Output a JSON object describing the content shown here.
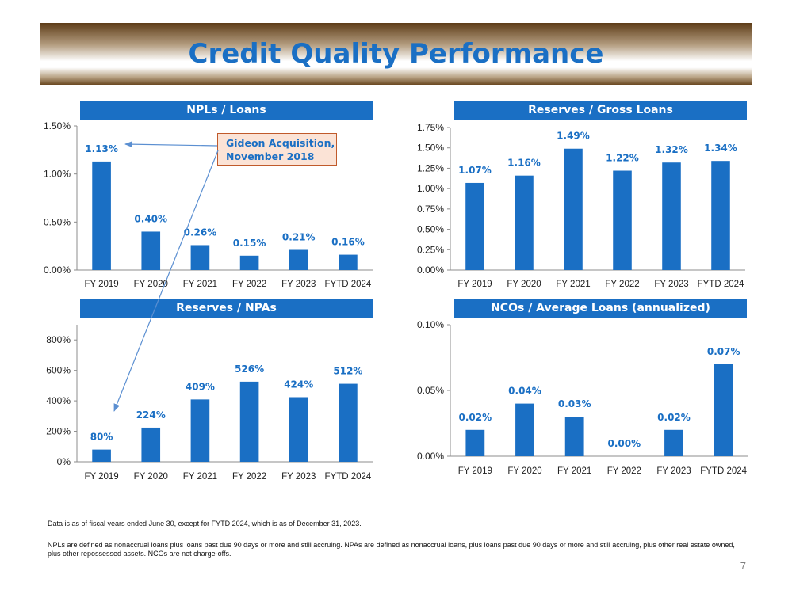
{
  "page": {
    "title": "Credit Quality Performance",
    "callout": {
      "line1": "Gideon Acquisition,",
      "line2": "November 2018"
    },
    "footnote1": "Data is as of fiscal years ended June 30, except for FYTD 2024, which is as of December 31, 2023.",
    "footnote2": "NPLs are defined as nonaccrual loans plus loans past due 90 days or more and still accruing. NPAs are defined as nonaccrual loans, plus loans past due 90 days or more and still accruing, plus other real estate owned, plus other repossessed assets. NCOs are net charge-offs.",
    "page_number": "7"
  },
  "colors": {
    "bar": "#1a6fc4",
    "header": "#1a6fc4",
    "label": "#1a6fc4",
    "callout_fill": "#fbe3d6",
    "callout_border": "#c05a2b"
  },
  "chart_data": [
    {
      "type": "bar",
      "title": "NPLs / Loans",
      "categories": [
        "FY 2019",
        "FY 2020",
        "FY 2021",
        "FY 2022",
        "FY 2023",
        "FYTD 2024"
      ],
      "values": [
        1.13,
        0.4,
        0.26,
        0.15,
        0.21,
        0.16
      ],
      "labels": [
        "1.13%",
        "0.40%",
        "0.26%",
        "0.15%",
        "0.21%",
        "0.16%"
      ],
      "yticks": [
        0,
        0.5,
        1.0,
        1.5
      ],
      "ytick_labels": [
        "0.00%",
        "0.50%",
        "1.00%",
        "1.50%"
      ],
      "ylim": [
        0,
        1.5
      ],
      "xlabel": "",
      "ylabel": ""
    },
    {
      "type": "bar",
      "title": "Reserves / Gross Loans",
      "categories": [
        "FY 2019",
        "FY 2020",
        "FY 2021",
        "FY 2022",
        "FY 2023",
        "FYTD 2024"
      ],
      "values": [
        1.07,
        1.16,
        1.49,
        1.22,
        1.32,
        1.34
      ],
      "labels": [
        "1.07%",
        "1.16%",
        "1.49%",
        "1.22%",
        "1.32%",
        "1.34%"
      ],
      "yticks": [
        0,
        0.25,
        0.5,
        0.75,
        1.0,
        1.25,
        1.5,
        1.75
      ],
      "ytick_labels": [
        "0.00%",
        "0.25%",
        "0.50%",
        "0.75%",
        "1.00%",
        "1.25%",
        "1.50%",
        "1.75%"
      ],
      "ylim": [
        0,
        1.75
      ],
      "xlabel": "",
      "ylabel": ""
    },
    {
      "type": "bar",
      "title": "Reserves / NPAs",
      "categories": [
        "FY 2019",
        "FY 2020",
        "FY 2021",
        "FY 2022",
        "FY 2023",
        "FYTD 2024"
      ],
      "values": [
        80,
        224,
        409,
        526,
        424,
        512
      ],
      "labels": [
        "80%",
        "224%",
        "409%",
        "526%",
        "424%",
        "512%"
      ],
      "yticks": [
        0,
        200,
        400,
        600,
        800
      ],
      "ytick_labels": [
        "0%",
        "200%",
        "400%",
        "600%",
        "800%"
      ],
      "ylim": [
        0,
        900
      ],
      "xlabel": "",
      "ylabel": ""
    },
    {
      "type": "bar",
      "title": "NCOs / Average Loans (annualized)",
      "categories": [
        "FY 2019",
        "FY 2020",
        "FY 2021",
        "FY 2022",
        "FY 2023",
        "FYTD 2024"
      ],
      "values": [
        0.02,
        0.04,
        0.03,
        0.0,
        0.02,
        0.07
      ],
      "labels": [
        "0.02%",
        "0.04%",
        "0.03%",
        "0.00%",
        "0.02%",
        "0.07%"
      ],
      "yticks": [
        0,
        0.05,
        0.1
      ],
      "ytick_labels": [
        "0.00%",
        "0.05%",
        "0.10%"
      ],
      "ylim": [
        0,
        0.1
      ],
      "xlabel": "",
      "ylabel": ""
    }
  ]
}
